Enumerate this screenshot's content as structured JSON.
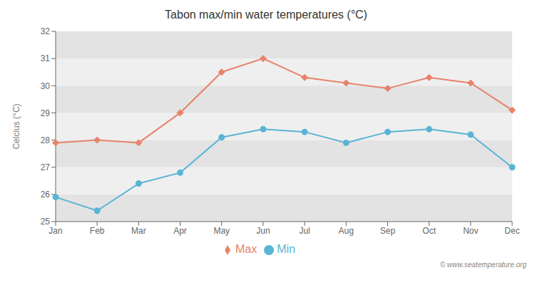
{
  "chart_data": {
    "type": "line",
    "title": "Tabon max/min water temperatures (°C)",
    "y_label": "Celcius (°C)",
    "categories": [
      "Jan",
      "Feb",
      "Mar",
      "Apr",
      "May",
      "Jun",
      "Jul",
      "Aug",
      "Sep",
      "Oct",
      "Nov",
      "Dec"
    ],
    "series": [
      {
        "name": "Max",
        "color": "#e8836a",
        "marker": "diamond",
        "values": [
          27.9,
          28.0,
          27.9,
          29.0,
          30.5,
          31.0,
          30.3,
          30.1,
          29.9,
          30.3,
          30.1,
          29.1
        ]
      },
      {
        "name": "Min",
        "color": "#5ab4d6",
        "marker": "circle",
        "values": [
          25.9,
          25.4,
          26.4,
          26.8,
          28.1,
          28.4,
          28.3,
          27.9,
          28.3,
          28.4,
          28.2,
          27.0
        ]
      }
    ],
    "ylim": [
      25,
      32
    ],
    "yticks": [
      25,
      26,
      27,
      28,
      29,
      30,
      31,
      32
    ],
    "grid": true,
    "legend": "bottom",
    "annotations": [
      "© www.seatemperature.org"
    ]
  }
}
